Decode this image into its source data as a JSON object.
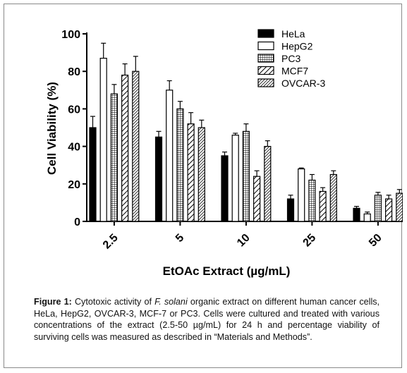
{
  "chart_data": {
    "type": "bar",
    "xlabel": "EtOAc Extract (µg/mL)",
    "ylabel": "Cell Viability (%)",
    "ylim": [
      0,
      100
    ],
    "yticks": [
      "0",
      "20",
      "40",
      "60",
      "80",
      "100"
    ],
    "categories": [
      "2.5",
      "5",
      "10",
      "25",
      "50"
    ],
    "legend_position": "top-right",
    "series": [
      {
        "name": "HeLa",
        "pattern": "solid",
        "values": [
          50,
          45,
          35,
          12,
          7
        ],
        "errors": [
          6,
          3,
          2,
          2,
          1
        ]
      },
      {
        "name": "HepG2",
        "pattern": "open",
        "values": [
          87,
          70,
          46,
          28,
          4
        ],
        "errors": [
          8,
          5,
          1,
          0.5,
          1
        ]
      },
      {
        "name": "PC3",
        "pattern": "grid",
        "values": [
          68,
          60,
          48,
          22,
          14
        ],
        "errors": [
          5,
          4,
          4,
          3,
          1.5
        ]
      },
      {
        "name": "MCF7",
        "pattern": "diagonal",
        "values": [
          78,
          52,
          24,
          16,
          12
        ],
        "errors": [
          6,
          6,
          3,
          2,
          2
        ]
      },
      {
        "name": "OVCAR-3",
        "pattern": "dense-diagonal",
        "values": [
          80,
          50,
          40,
          25,
          15
        ],
        "errors": [
          8,
          4,
          3,
          2,
          2
        ]
      }
    ],
    "colors": {
      "bar_fill": "#000000",
      "bar_open": "#ffffff",
      "stroke": "#000000"
    }
  },
  "caption": {
    "label": "Figure 1:",
    "text_before": "Cytotoxic activity of",
    "species": "F. solani",
    "text_after": "organic extract on different human cancer cells, HeLa, HepG2, OVCAR-3, MCF-7 or PC3. Cells were cultured and treated with various concentrations of the extract (2.5-50 µg/mL) for 24 h and percentage viability of surviving cells was measured as described in “Materials and Methods”."
  }
}
